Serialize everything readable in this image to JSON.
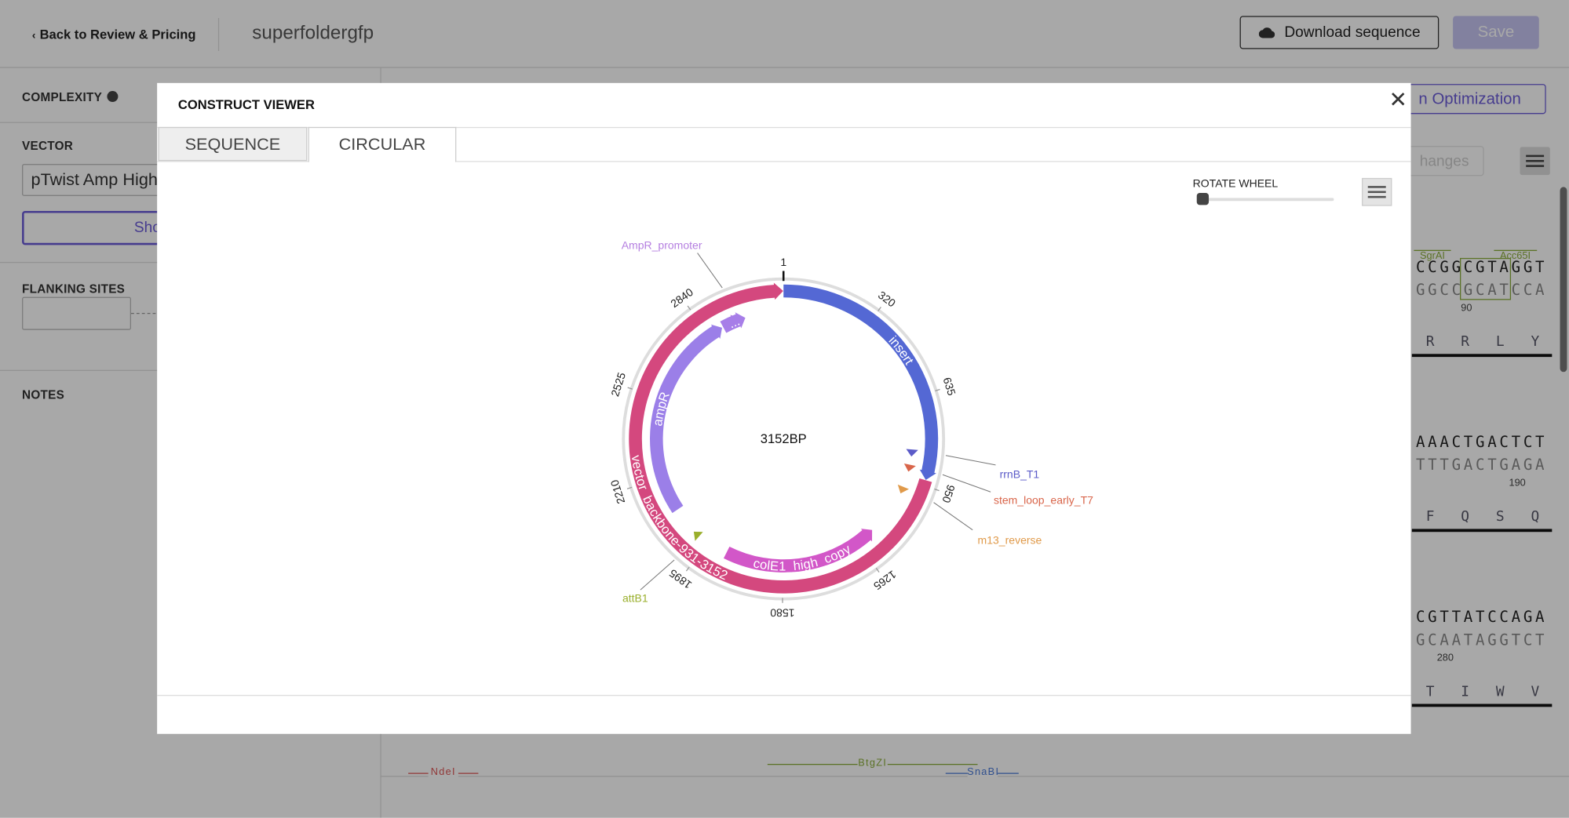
{
  "top_bar": {
    "back_link": "Back to Review & Pricing",
    "construct_name": "superfoldergfp",
    "download_button": "Download sequence",
    "save_button": "Save"
  },
  "sidebar": {
    "complexity": "COMPLEXITY",
    "vector_label": "VECTOR",
    "vector_value": "pTwist Amp High",
    "show_button": "Sho",
    "flanking_sites": "FLANKING SITES",
    "notes": "NOTES"
  },
  "sequence_panel": {
    "optimization_button": "n Optimization",
    "changes_button": "hanges",
    "blocks": [
      {
        "enzymes": [
          "SgrAI",
          "Acc65I"
        ],
        "top": "CCGGCGTAGGT",
        "bottom": "GGCCGCATCCA",
        "position": 90,
        "amino_acids": [
          "R",
          "R",
          "L",
          "Y"
        ]
      },
      {
        "enzymes": [],
        "top": "AAACTGACTCT",
        "bottom": "TTTGACTGAGA",
        "position": 190,
        "amino_acids": [
          "F",
          "Q",
          "S",
          "Q"
        ]
      },
      {
        "enzymes": [],
        "top": "CGTTATCCAGA",
        "bottom": "GCAATAGGTCT",
        "position": 280,
        "amino_acids": [
          "T",
          "I",
          "W",
          "V"
        ]
      }
    ],
    "bottom_enzymes": [
      "NdeI",
      "BtgZI",
      "SnaBI"
    ]
  },
  "modal": {
    "title": "CONSTRUCT VIEWER",
    "tabs": [
      "SEQUENCE",
      "CIRCULAR"
    ],
    "active_tab": 1,
    "rotate_label": "ROTATE WHEEL",
    "plasmid": {
      "length": {
        "value": 3152,
        "label": "3152BP"
      },
      "ticks": [
        1,
        320,
        635,
        950,
        1265,
        1580,
        1895,
        2210,
        2525,
        2840
      ],
      "features": [
        {
          "name": "insert",
          "start": 1,
          "end": 930,
          "reverse": false,
          "color": "#5468d4"
        },
        {
          "name": "vector_backbone-931-3152",
          "start": 931,
          "end": 3152,
          "reverse": false,
          "color": "#d4487e"
        },
        {
          "name": "colE1_high_copy",
          "start": 1190,
          "end": 1810,
          "reverse": true,
          "color": "#d257c8"
        },
        {
          "name": "ampR",
          "start": 2070,
          "end": 2900,
          "reverse": false,
          "color": "#9b7fe8"
        },
        {
          "name": "...",
          "start": 2905,
          "end": 3000,
          "reverse": false,
          "color": "#a77ee8"
        }
      ],
      "markers": [
        {
          "name": "rrnB_T1",
          "position": 840,
          "color": "#5b5bc8"
        },
        {
          "name": "stem_loop_early_T7",
          "position": 900,
          "color": "#d9654a"
        },
        {
          "name": "m13_reverse",
          "position": 990,
          "color": "#e09a4a"
        },
        {
          "name": "attB1",
          "position": 1945,
          "color": "#9aaf2c"
        },
        {
          "name": "AmpR_promoter",
          "position": 2960,
          "color": "#b57fe0"
        }
      ]
    }
  }
}
